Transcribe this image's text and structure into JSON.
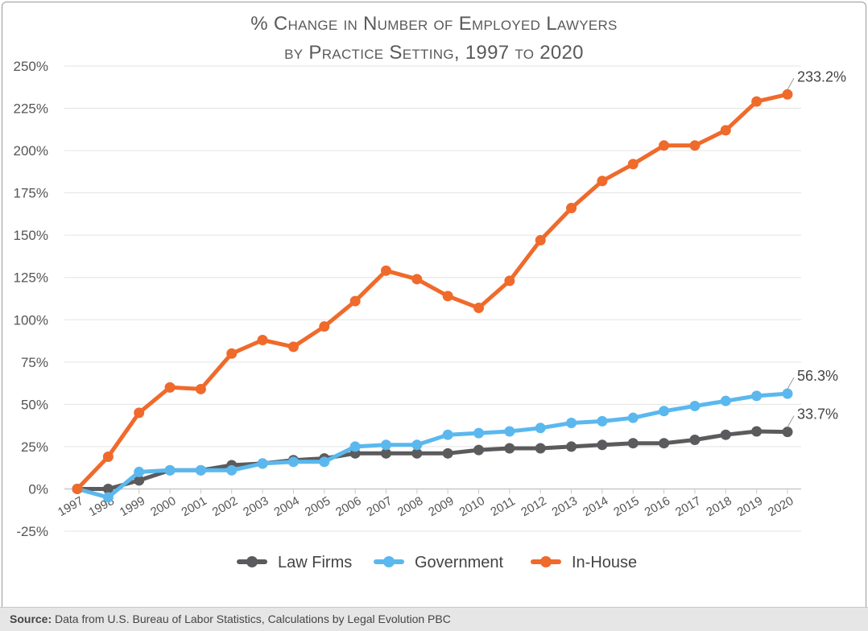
{
  "chart_data": {
    "type": "line",
    "title_line1": "% Change in Number of Employed Lawyers",
    "title_line2": "by Practice Setting, 1997 to 2020",
    "categories": [
      "1997",
      "1998",
      "1999",
      "2000",
      "2001",
      "2002",
      "2003",
      "2004",
      "2005",
      "2006",
      "2007",
      "2008",
      "2009",
      "2010",
      "2011",
      "2012",
      "2013",
      "2014",
      "2015",
      "2016",
      "2017",
      "2018",
      "2019",
      "2020"
    ],
    "ylim": [
      -25,
      250
    ],
    "yticks": [
      -25,
      0,
      25,
      50,
      75,
      100,
      125,
      150,
      175,
      200,
      225,
      250
    ],
    "ytick_labels": [
      "-25%",
      "0%",
      "25%",
      "50%",
      "75%",
      "100%",
      "125%",
      "150%",
      "175%",
      "200%",
      "225%",
      "250%"
    ],
    "grid": true,
    "legend_position": "bottom",
    "series": [
      {
        "name": "Law Firms",
        "color": "#5b5b5e",
        "values": [
          0,
          0,
          5,
          11,
          11,
          14,
          15,
          17,
          18,
          21,
          21,
          21,
          21,
          23,
          24,
          24,
          25,
          26,
          27,
          27,
          29,
          32,
          34,
          33.7
        ]
      },
      {
        "name": "Government",
        "color": "#5ab8ee",
        "values": [
          0,
          -5,
          10,
          11,
          11,
          11,
          15,
          16,
          16,
          25,
          26,
          26,
          32,
          33,
          34,
          36,
          39,
          40,
          42,
          46,
          49,
          52,
          55,
          56.3
        ]
      },
      {
        "name": "In-House",
        "color": "#ef6a2b",
        "values": [
          0,
          19,
          45,
          60,
          59,
          80,
          88,
          84,
          96,
          111,
          129,
          124,
          114,
          107,
          123,
          147,
          166,
          182,
          192,
          203,
          203,
          212,
          229,
          233.2
        ]
      }
    ],
    "end_labels": [
      "33.7%",
      "56.3%",
      "233.2%"
    ]
  },
  "source": {
    "label": "Source:",
    "text": " Data from U.S. Bureau of Labor Statistics, Calculations by Legal Evolution PBC"
  }
}
